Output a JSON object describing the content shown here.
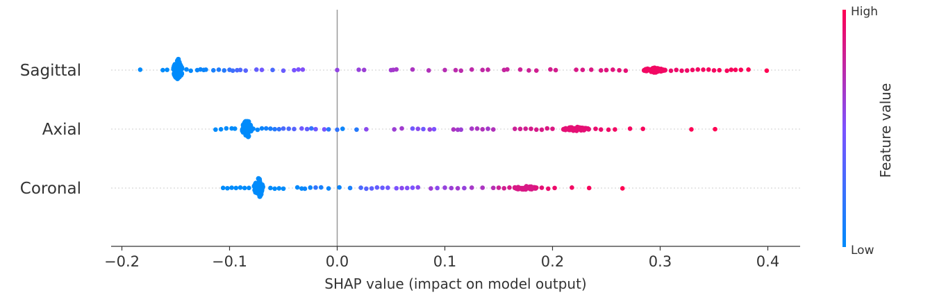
{
  "chart_data": {
    "type": "scatter",
    "xlabel": "SHAP value (impact on model output)",
    "x_ticks": [
      -0.2,
      -0.1,
      0.0,
      0.1,
      0.2,
      0.3,
      0.4
    ],
    "x_tick_labels": [
      "−0.2",
      "−0.1",
      "0.0",
      "0.1",
      "0.2",
      "0.3",
      "0.4"
    ],
    "xlim": [
      -0.21,
      0.43
    ],
    "zero_line": 0.0,
    "colorbar": {
      "title": "Feature value",
      "high_label": "High",
      "low_label": "Low",
      "low_color": "#008bfb",
      "high_color": "#ff0052"
    },
    "features": [
      {
        "name": "Sagittal",
        "points": [
          {
            "x": -0.183,
            "v": 0.0
          },
          {
            "x": -0.162,
            "v": 0.0
          },
          {
            "x": -0.158,
            "v": 0.0
          },
          {
            "x": -0.14,
            "v": 0.02
          },
          {
            "x": -0.136,
            "v": 0.02
          },
          {
            "x": -0.13,
            "v": 0.04
          },
          {
            "x": -0.127,
            "v": 0.04
          },
          {
            "x": -0.124,
            "v": 0.05
          },
          {
            "x": -0.122,
            "v": 0.05
          },
          {
            "x": -0.115,
            "v": 0.1
          },
          {
            "x": -0.11,
            "v": 0.12
          },
          {
            "x": -0.105,
            "v": 0.15
          },
          {
            "x": -0.1,
            "v": 0.2
          },
          {
            "x": -0.097,
            "v": 0.25
          },
          {
            "x": -0.093,
            "v": 0.3
          },
          {
            "x": -0.09,
            "v": 0.32
          },
          {
            "x": -0.085,
            "v": 0.35
          },
          {
            "x": -0.075,
            "v": 0.4
          },
          {
            "x": -0.07,
            "v": 0.45
          },
          {
            "x": -0.06,
            "v": 0.3
          },
          {
            "x": -0.05,
            "v": 0.42
          },
          {
            "x": -0.04,
            "v": 0.48
          },
          {
            "x": -0.036,
            "v": 0.5
          },
          {
            "x": -0.032,
            "v": 0.52
          },
          {
            "x": 0.0,
            "v": 0.58
          },
          {
            "x": 0.02,
            "v": 0.6
          },
          {
            "x": 0.025,
            "v": 0.62
          },
          {
            "x": 0.05,
            "v": 0.64
          },
          {
            "x": 0.052,
            "v": 0.65
          },
          {
            "x": 0.055,
            "v": 0.66
          },
          {
            "x": 0.07,
            "v": 0.68
          },
          {
            "x": 0.085,
            "v": 0.7
          },
          {
            "x": 0.1,
            "v": 0.72
          },
          {
            "x": 0.11,
            "v": 0.74
          },
          {
            "x": 0.115,
            "v": 0.74
          },
          {
            "x": 0.125,
            "v": 0.75
          },
          {
            "x": 0.135,
            "v": 0.76
          },
          {
            "x": 0.14,
            "v": 0.76
          },
          {
            "x": 0.155,
            "v": 0.78
          },
          {
            "x": 0.158,
            "v": 0.78
          },
          {
            "x": 0.17,
            "v": 0.8
          },
          {
            "x": 0.178,
            "v": 0.8
          },
          {
            "x": 0.185,
            "v": 0.82
          },
          {
            "x": 0.198,
            "v": 0.83
          },
          {
            "x": 0.203,
            "v": 0.83
          },
          {
            "x": 0.222,
            "v": 0.85
          },
          {
            "x": 0.228,
            "v": 0.85
          },
          {
            "x": 0.236,
            "v": 0.86
          },
          {
            "x": 0.245,
            "v": 0.87
          },
          {
            "x": 0.25,
            "v": 0.88
          },
          {
            "x": 0.256,
            "v": 0.88
          },
          {
            "x": 0.262,
            "v": 0.89
          },
          {
            "x": 0.268,
            "v": 0.9
          },
          {
            "x": 0.31,
            "v": 0.93
          },
          {
            "x": 0.315,
            "v": 0.93
          },
          {
            "x": 0.32,
            "v": 0.94
          },
          {
            "x": 0.325,
            "v": 0.94
          },
          {
            "x": 0.33,
            "v": 0.95
          },
          {
            "x": 0.335,
            "v": 0.95
          },
          {
            "x": 0.34,
            "v": 0.96
          },
          {
            "x": 0.345,
            "v": 0.96
          },
          {
            "x": 0.35,
            "v": 0.96
          },
          {
            "x": 0.355,
            "v": 0.97
          },
          {
            "x": 0.362,
            "v": 0.97
          },
          {
            "x": 0.366,
            "v": 0.97
          },
          {
            "x": 0.37,
            "v": 0.98
          },
          {
            "x": 0.375,
            "v": 0.98
          },
          {
            "x": 0.382,
            "v": 0.99
          },
          {
            "x": 0.399,
            "v": 1.0
          }
        ],
        "clusters": [
          {
            "x": -0.148,
            "spread": 0.004,
            "count": 60,
            "v": 0.0,
            "max_height": 0.42
          },
          {
            "x": 0.295,
            "spread": 0.01,
            "count": 40,
            "v": 0.95,
            "max_height": 0.08
          }
        ]
      },
      {
        "name": "Axial",
        "points": [
          {
            "x": -0.113,
            "v": 0.0
          },
          {
            "x": -0.108,
            "v": 0.0
          },
          {
            "x": -0.103,
            "v": 0.0
          },
          {
            "x": -0.098,
            "v": 0.0
          },
          {
            "x": -0.095,
            "v": 0.0
          },
          {
            "x": -0.078,
            "v": 0.02
          },
          {
            "x": -0.074,
            "v": 0.02
          },
          {
            "x": -0.07,
            "v": 0.05
          },
          {
            "x": -0.066,
            "v": 0.08
          },
          {
            "x": -0.062,
            "v": 0.1
          },
          {
            "x": -0.058,
            "v": 0.15
          },
          {
            "x": -0.054,
            "v": 0.2
          },
          {
            "x": -0.05,
            "v": 0.3
          },
          {
            "x": -0.045,
            "v": 0.3
          },
          {
            "x": -0.04,
            "v": 0.35
          },
          {
            "x": -0.033,
            "v": 0.45
          },
          {
            "x": -0.028,
            "v": 0.4
          },
          {
            "x": -0.024,
            "v": 0.2
          },
          {
            "x": -0.02,
            "v": 0.45
          },
          {
            "x": -0.012,
            "v": 0.48
          },
          {
            "x": -0.008,
            "v": 0.15
          },
          {
            "x": 0.0,
            "v": 0.2
          },
          {
            "x": 0.005,
            "v": 0.05
          },
          {
            "x": 0.018,
            "v": 0.15
          },
          {
            "x": 0.027,
            "v": 0.55
          },
          {
            "x": 0.053,
            "v": 0.62
          },
          {
            "x": 0.06,
            "v": 0.64
          },
          {
            "x": 0.07,
            "v": 0.45
          },
          {
            "x": 0.075,
            "v": 0.55
          },
          {
            "x": 0.08,
            "v": 0.45
          },
          {
            "x": 0.086,
            "v": 0.6
          },
          {
            "x": 0.09,
            "v": 0.5
          },
          {
            "x": 0.108,
            "v": 0.68
          },
          {
            "x": 0.112,
            "v": 0.65
          },
          {
            "x": 0.115,
            "v": 0.62
          },
          {
            "x": 0.125,
            "v": 0.66
          },
          {
            "x": 0.13,
            "v": 0.68
          },
          {
            "x": 0.135,
            "v": 0.7
          },
          {
            "x": 0.14,
            "v": 0.65
          },
          {
            "x": 0.145,
            "v": 0.7
          },
          {
            "x": 0.165,
            "v": 0.8
          },
          {
            "x": 0.17,
            "v": 0.82
          },
          {
            "x": 0.175,
            "v": 0.82
          },
          {
            "x": 0.18,
            "v": 0.84
          },
          {
            "x": 0.185,
            "v": 0.84
          },
          {
            "x": 0.19,
            "v": 0.85
          },
          {
            "x": 0.195,
            "v": 0.86
          },
          {
            "x": 0.2,
            "v": 0.86
          },
          {
            "x": 0.24,
            "v": 0.92
          },
          {
            "x": 0.245,
            "v": 0.92
          },
          {
            "x": 0.252,
            "v": 0.94
          },
          {
            "x": 0.258,
            "v": 0.95
          },
          {
            "x": 0.272,
            "v": 0.96
          },
          {
            "x": 0.284,
            "v": 0.97
          },
          {
            "x": 0.329,
            "v": 0.99
          },
          {
            "x": 0.351,
            "v": 1.0
          }
        ],
        "clusters": [
          {
            "x": -0.084,
            "spread": 0.004,
            "count": 55,
            "v": 0.0,
            "max_height": 0.38
          },
          {
            "x": 0.222,
            "spread": 0.012,
            "count": 40,
            "v": 0.9,
            "max_height": 0.07
          }
        ]
      },
      {
        "name": "Coronal",
        "points": [
          {
            "x": -0.106,
            "v": 0.0
          },
          {
            "x": -0.102,
            "v": 0.0
          },
          {
            "x": -0.098,
            "v": 0.0
          },
          {
            "x": -0.094,
            "v": 0.0
          },
          {
            "x": -0.09,
            "v": 0.0
          },
          {
            "x": -0.086,
            "v": 0.0
          },
          {
            "x": -0.082,
            "v": 0.0
          },
          {
            "x": -0.062,
            "v": 0.0
          },
          {
            "x": -0.058,
            "v": 0.0
          },
          {
            "x": -0.054,
            "v": 0.0
          },
          {
            "x": -0.05,
            "v": 0.0
          },
          {
            "x": -0.037,
            "v": 0.02
          },
          {
            "x": -0.033,
            "v": 0.02
          },
          {
            "x": -0.03,
            "v": 0.05
          },
          {
            "x": -0.025,
            "v": 0.05
          },
          {
            "x": -0.02,
            "v": 0.2
          },
          {
            "x": -0.015,
            "v": 0.1
          },
          {
            "x": -0.008,
            "v": 0.05
          },
          {
            "x": 0.002,
            "v": 0.05
          },
          {
            "x": 0.012,
            "v": 0.1
          },
          {
            "x": 0.022,
            "v": 0.3
          },
          {
            "x": 0.027,
            "v": 0.35
          },
          {
            "x": 0.032,
            "v": 0.38
          },
          {
            "x": 0.037,
            "v": 0.4
          },
          {
            "x": 0.042,
            "v": 0.42
          },
          {
            "x": 0.047,
            "v": 0.45
          },
          {
            "x": 0.055,
            "v": 0.5
          },
          {
            "x": 0.06,
            "v": 0.55
          },
          {
            "x": 0.065,
            "v": 0.52
          },
          {
            "x": 0.07,
            "v": 0.5
          },
          {
            "x": 0.075,
            "v": 0.55
          },
          {
            "x": 0.087,
            "v": 0.62
          },
          {
            "x": 0.093,
            "v": 0.55
          },
          {
            "x": 0.1,
            "v": 0.6
          },
          {
            "x": 0.106,
            "v": 0.62
          },
          {
            "x": 0.112,
            "v": 0.64
          },
          {
            "x": 0.118,
            "v": 0.6
          },
          {
            "x": 0.125,
            "v": 0.66
          },
          {
            "x": 0.135,
            "v": 0.68
          },
          {
            "x": 0.145,
            "v": 0.72
          },
          {
            "x": 0.15,
            "v": 0.8
          },
          {
            "x": 0.155,
            "v": 0.82
          },
          {
            "x": 0.16,
            "v": 0.84
          },
          {
            "x": 0.165,
            "v": 0.85
          },
          {
            "x": 0.185,
            "v": 0.88
          },
          {
            "x": 0.19,
            "v": 0.9
          },
          {
            "x": 0.196,
            "v": 0.92
          },
          {
            "x": 0.202,
            "v": 0.93
          },
          {
            "x": 0.218,
            "v": 0.95
          },
          {
            "x": 0.234,
            "v": 0.97
          },
          {
            "x": 0.265,
            "v": 1.0
          }
        ],
        "clusters": [
          {
            "x": -0.073,
            "spread": 0.004,
            "count": 55,
            "v": 0.0,
            "max_height": 0.38
          },
          {
            "x": 0.175,
            "spread": 0.01,
            "count": 35,
            "v": 0.85,
            "max_height": 0.07
          }
        ]
      }
    ]
  }
}
